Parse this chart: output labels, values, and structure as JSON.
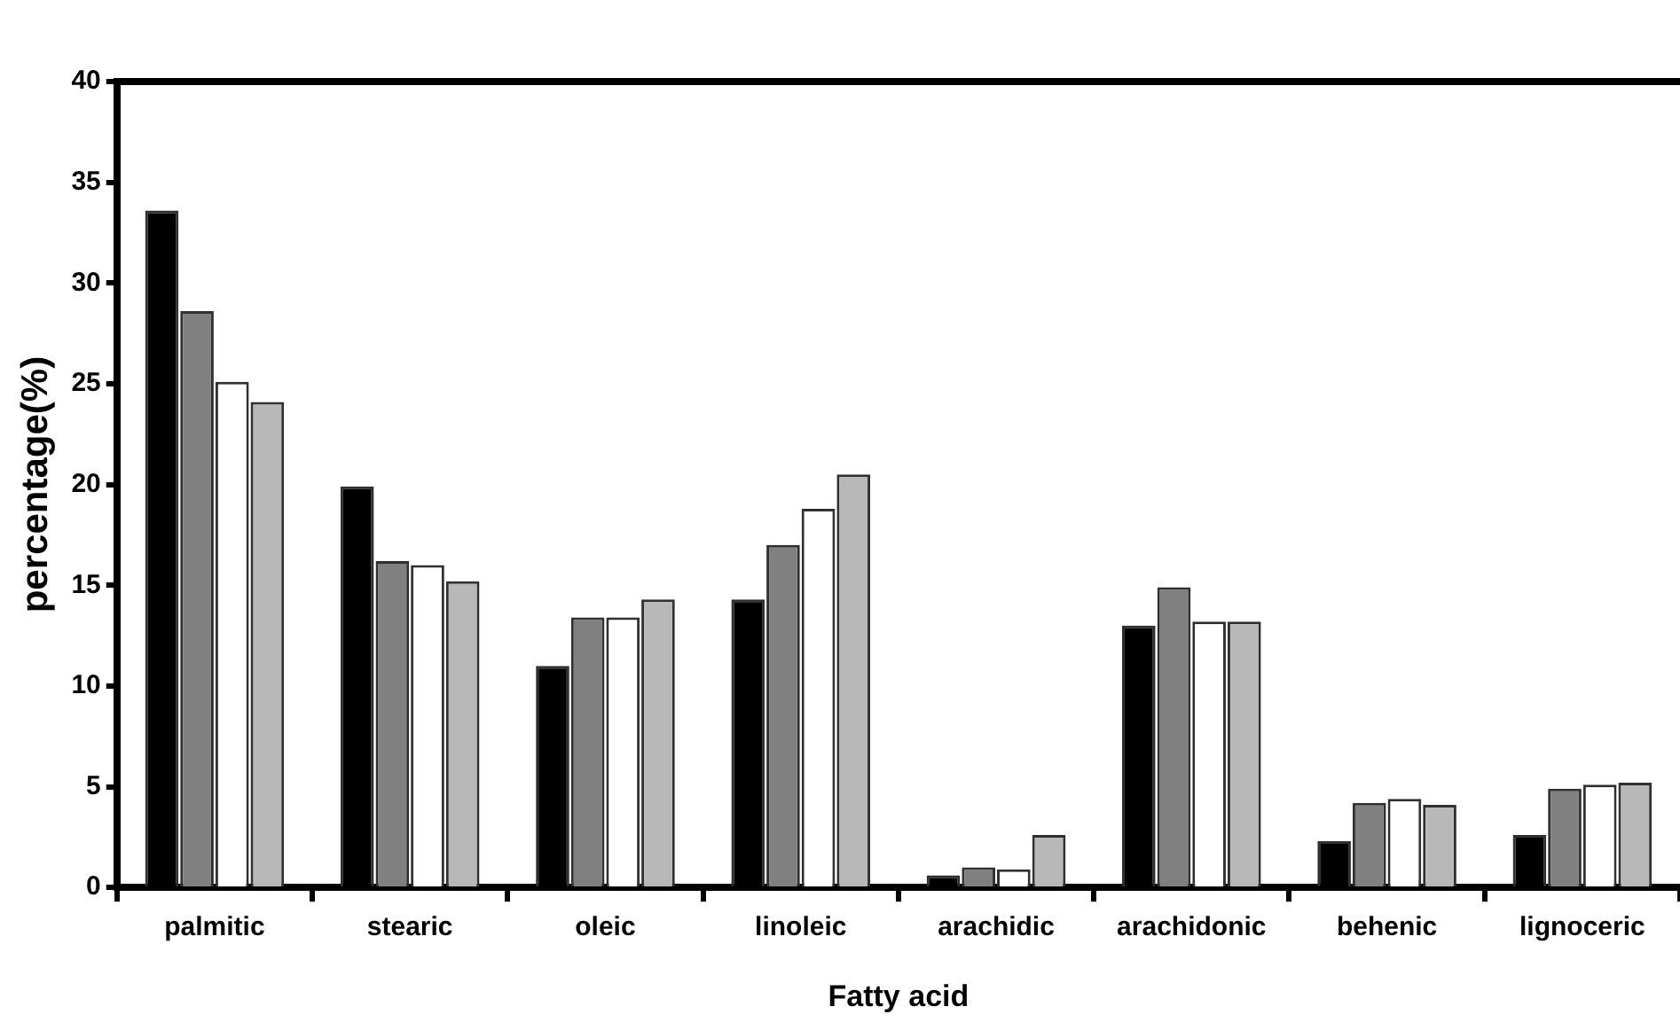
{
  "chart_data": {
    "type": "bar",
    "xlabel": "Fatty acid",
    "ylabel": "percentage(%)",
    "categories": [
      "palmitic",
      "stearic",
      "oleic",
      "linoleic",
      "arachidic",
      "arachidonic",
      "behenic",
      "lignoceric"
    ],
    "series": [
      {
        "color": "#000000",
        "values": [
          33.6,
          19.9,
          11.0,
          14.3,
          0.6,
          13.0,
          2.3,
          2.6
        ]
      },
      {
        "color": "#808080",
        "values": [
          28.6,
          16.2,
          13.4,
          17.0,
          1.0,
          14.9,
          4.2,
          4.9
        ]
      },
      {
        "color": "#ffffff",
        "values": [
          25.1,
          16.0,
          13.4,
          18.8,
          0.9,
          13.2,
          4.4,
          5.1
        ]
      },
      {
        "color": "#b8b8b8",
        "values": [
          24.1,
          15.2,
          14.3,
          20.5,
          2.6,
          13.2,
          4.1,
          5.2
        ]
      }
    ],
    "ylim": [
      0,
      40
    ],
    "yticks": [
      0,
      5,
      10,
      15,
      20,
      25,
      30,
      35,
      40
    ],
    "grid": false,
    "legend": false
  }
}
